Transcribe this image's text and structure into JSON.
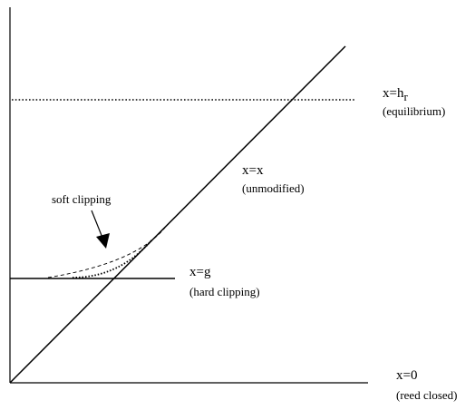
{
  "labels": {
    "equilibrium_name": "x=h",
    "equilibrium_sub": "r",
    "equilibrium_desc": "(equilibrium)",
    "unmodified_name": "x=x",
    "unmodified_desc": "(unmodified)",
    "soft_clipping": "soft clipping",
    "hard_clipping_name": "x=g",
    "hard_clipping_desc": "(hard clipping)",
    "reed_closed_name": "x=0",
    "reed_closed_desc": "(reed closed)"
  }
}
